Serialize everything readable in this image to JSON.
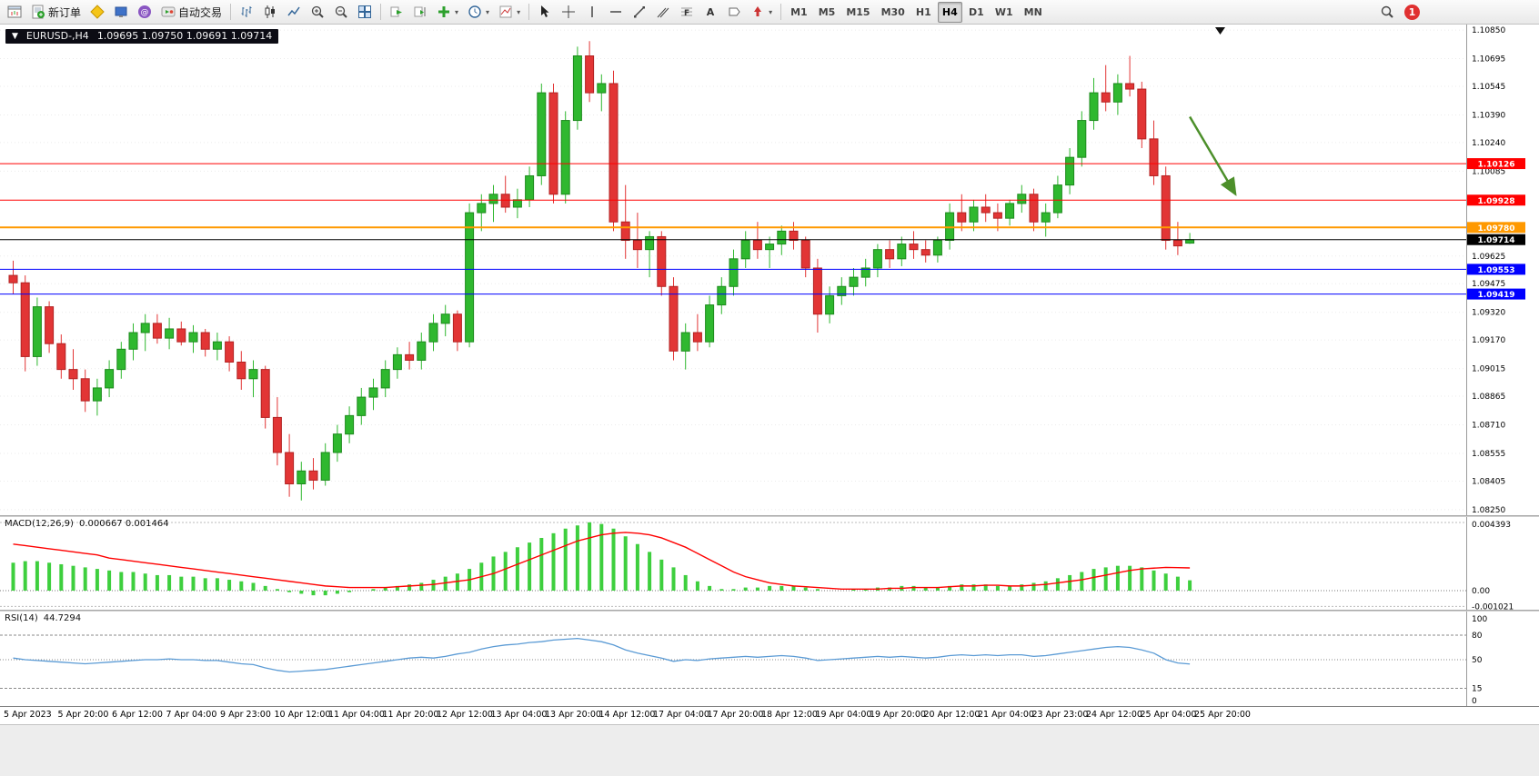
{
  "window": {
    "badge_count": "1"
  },
  "toolbar": {
    "new_order_label": "新订单",
    "autotrading_label": "自动交易",
    "timeframes": [
      "M1",
      "M5",
      "M15",
      "M30",
      "H1",
      "H4",
      "D1",
      "W1",
      "MN"
    ],
    "active_timeframe": "H4"
  },
  "chart": {
    "symbol": "EURUSD-,H4",
    "ohlc_text": "1.09695 1.09750 1.09691 1.09714"
  },
  "colors": {
    "up": "#2fb82f",
    "down": "#e23535",
    "macd_histogram": "#3ecf3e",
    "macd_signal": "#ff0000",
    "rsi_line": "#5b9bd5",
    "resistance_line": "#ff0000",
    "pivot_line": "#ff9900",
    "price_line": "#000000",
    "support_line": "#0000ff",
    "arrow": "#4c8f2a"
  },
  "chart_data": [
    {
      "type": "candlestick",
      "symbol": "EURUSD-",
      "timeframe": "H4",
      "ylim": [
        1.0822,
        1.1088
      ],
      "price_ticks": [
        1.1085,
        1.10695,
        1.10545,
        1.1039,
        1.1024,
        1.10085,
        1.09625,
        1.09475,
        1.0932,
        1.0917,
        1.09015,
        1.08865,
        1.0871,
        1.08555,
        1.08405,
        1.0825
      ],
      "hlines": [
        {
          "price": 1.10126,
          "color": "#ff0000",
          "label": "1.10126",
          "width": 1
        },
        {
          "price": 1.09928,
          "color": "#ff0000",
          "label": "1.09928",
          "width": 1
        },
        {
          "price": 1.0978,
          "color": "#ff9900",
          "label": "1.09780",
          "width": 2
        },
        {
          "price": 1.09714,
          "color": "#000000",
          "label": "1.09714",
          "width": 1
        },
        {
          "price": 1.09553,
          "color": "#0000ff",
          "label": "1.09553",
          "width": 1
        },
        {
          "price": 1.09419,
          "color": "#0000ff",
          "label": "1.09419",
          "width": 1
        }
      ],
      "annotation": {
        "type": "arrow",
        "color": "#4c8f2a",
        "from": {
          "bar": 98,
          "price": 1.1038
        },
        "to": {
          "bar": 101.8,
          "price": 1.0996
        }
      },
      "time_labels": [
        "5 Apr 2023",
        "5 Apr 20:00",
        "6 Apr 12:00",
        "7 Apr 04:00",
        "9 Apr 23:00",
        "10 Apr 12:00",
        "11 Apr 04:00",
        "11 Apr 20:00",
        "12 Apr 12:00",
        "13 Apr 04:00",
        "13 Apr 20:00",
        "14 Apr 12:00",
        "17 Apr 04:00",
        "17 Apr 20:00",
        "18 Apr 12:00",
        "19 Apr 04:00",
        "19 Apr 20:00",
        "20 Apr 12:00",
        "21 Apr 04:00",
        "23 Apr 23:00",
        "24 Apr 12:00",
        "25 Apr 04:00",
        "25 Apr 20:00"
      ],
      "candles": [
        [
          1.0952,
          1.096,
          1.0942,
          1.0948
        ],
        [
          1.0948,
          1.0952,
          1.09,
          1.0908
        ],
        [
          1.0908,
          1.094,
          1.0903,
          1.0935
        ],
        [
          1.0935,
          1.0938,
          1.091,
          1.0915
        ],
        [
          1.0915,
          1.092,
          1.0896,
          1.0901
        ],
        [
          1.0901,
          1.0912,
          1.089,
          1.0896
        ],
        [
          1.0896,
          1.0901,
          1.0878,
          1.0884
        ],
        [
          1.0884,
          1.0896,
          1.0876,
          1.0891
        ],
        [
          1.0891,
          1.0906,
          1.0886,
          1.0901
        ],
        [
          1.0901,
          1.0916,
          1.0896,
          1.0912
        ],
        [
          1.0912,
          1.0926,
          1.0906,
          1.0921
        ],
        [
          1.0921,
          1.0931,
          1.0911,
          1.0926
        ],
        [
          1.0926,
          1.0931,
          1.0915,
          1.0918
        ],
        [
          1.0918,
          1.0929,
          1.0912,
          1.0923
        ],
        [
          1.0923,
          1.0927,
          1.0914,
          1.0916
        ],
        [
          1.0916,
          1.0925,
          1.091,
          1.0921
        ],
        [
          1.0921,
          1.0923,
          1.0908,
          1.0912
        ],
        [
          1.0912,
          1.0921,
          1.0906,
          1.0916
        ],
        [
          1.0916,
          1.0919,
          1.09,
          1.0905
        ],
        [
          1.0905,
          1.0911,
          1.089,
          1.0896
        ],
        [
          1.0896,
          1.0906,
          1.0886,
          1.0901
        ],
        [
          1.0901,
          1.0903,
          1.0869,
          1.0875
        ],
        [
          1.0875,
          1.0886,
          1.0849,
          1.0856
        ],
        [
          1.0856,
          1.0866,
          1.0832,
          1.0839
        ],
        [
          1.0839,
          1.0851,
          1.083,
          1.0846
        ],
        [
          1.0846,
          1.0853,
          1.0836,
          1.0841
        ],
        [
          1.0841,
          1.0861,
          1.0838,
          1.0856
        ],
        [
          1.0856,
          1.0871,
          1.0851,
          1.0866
        ],
        [
          1.0866,
          1.0881,
          1.0861,
          1.0876
        ],
        [
          1.0876,
          1.0891,
          1.0871,
          1.0886
        ],
        [
          1.0886,
          1.0896,
          1.0879,
          1.0891
        ],
        [
          1.0891,
          1.0906,
          1.0886,
          1.0901
        ],
        [
          1.0901,
          1.0913,
          1.0896,
          1.0909
        ],
        [
          1.0909,
          1.0916,
          1.0901,
          1.0906
        ],
        [
          1.0906,
          1.0921,
          1.0901,
          1.0916
        ],
        [
          1.0916,
          1.0931,
          1.0911,
          1.0926
        ],
        [
          1.0926,
          1.0936,
          1.0919,
          1.0931
        ],
        [
          1.0931,
          1.0933,
          1.0911,
          1.0916
        ],
        [
          1.0916,
          1.0991,
          1.0913,
          1.0986
        ],
        [
          1.0986,
          1.0996,
          1.0976,
          1.0991
        ],
        [
          1.0991,
          1.1001,
          1.0981,
          1.0996
        ],
        [
          1.0996,
          1.1006,
          1.0986,
          1.0989
        ],
        [
          1.0989,
          1.0999,
          1.0983,
          1.0993
        ],
        [
          1.0993,
          1.1011,
          1.0989,
          1.1006
        ],
        [
          1.1006,
          1.1056,
          1.1001,
          1.1051
        ],
        [
          1.1051,
          1.1056,
          1.0991,
          1.0996
        ],
        [
          1.0996,
          1.1041,
          1.0991,
          1.1036
        ],
        [
          1.1036,
          1.1076,
          1.1031,
          1.1071
        ],
        [
          1.1071,
          1.1079,
          1.1046,
          1.1051
        ],
        [
          1.1051,
          1.1061,
          1.1041,
          1.1056
        ],
        [
          1.1056,
          1.1063,
          1.0976,
          1.0981
        ],
        [
          1.0981,
          1.1001,
          1.0961,
          1.0971
        ],
        [
          1.0971,
          1.0986,
          1.0956,
          1.0966
        ],
        [
          1.0966,
          1.0976,
          1.0951,
          1.0973
        ],
        [
          1.0973,
          1.0976,
          1.0941,
          1.0946
        ],
        [
          1.0946,
          1.0951,
          1.0906,
          1.0911
        ],
        [
          1.0911,
          1.0926,
          1.0901,
          1.0921
        ],
        [
          1.0921,
          1.0931,
          1.0911,
          1.0916
        ],
        [
          1.0916,
          1.0941,
          1.0913,
          1.0936
        ],
        [
          1.0936,
          1.0951,
          1.0931,
          1.0946
        ],
        [
          1.0946,
          1.0966,
          1.0941,
          1.0961
        ],
        [
          1.0961,
          1.0976,
          1.0956,
          1.0971
        ],
        [
          1.0971,
          1.0981,
          1.0961,
          1.0966
        ],
        [
          1.0966,
          1.0973,
          1.0956,
          1.0969
        ],
        [
          1.0969,
          1.0979,
          1.0963,
          1.0976
        ],
        [
          1.0976,
          1.0981,
          1.0966,
          1.0971
        ],
        [
          1.0971,
          1.0973,
          1.0951,
          1.0956
        ],
        [
          1.0956,
          1.0961,
          1.0921,
          1.0931
        ],
        [
          1.0931,
          1.0946,
          1.0926,
          1.0941
        ],
        [
          1.0941,
          1.0951,
          1.0936,
          1.0946
        ],
        [
          1.0946,
          1.0956,
          1.0941,
          1.0951
        ],
        [
          1.0951,
          1.0961,
          1.0946,
          1.0956
        ],
        [
          1.0956,
          1.0969,
          1.0951,
          1.0966
        ],
        [
          1.0966,
          1.0971,
          1.0956,
          1.0961
        ],
        [
          1.0961,
          1.0973,
          1.0957,
          1.0969
        ],
        [
          1.0969,
          1.0976,
          1.0961,
          1.0966
        ],
        [
          1.0966,
          1.0971,
          1.0959,
          1.0963
        ],
        [
          1.0963,
          1.0973,
          1.0959,
          1.0971
        ],
        [
          1.0971,
          1.0991,
          1.0966,
          1.0986
        ],
        [
          1.0986,
          1.0996,
          1.0976,
          1.0981
        ],
        [
          1.0981,
          1.0993,
          1.0976,
          1.0989
        ],
        [
          1.0989,
          1.0996,
          1.0981,
          1.0986
        ],
        [
          1.0986,
          1.0991,
          1.0976,
          1.0983
        ],
        [
          1.0983,
          1.0993,
          1.0979,
          1.0991
        ],
        [
          1.0991,
          1.1001,
          1.0986,
          1.0996
        ],
        [
          1.0996,
          1.0999,
          1.0976,
          1.0981
        ],
        [
          1.0981,
          1.0991,
          1.0973,
          1.0986
        ],
        [
          1.0986,
          1.1006,
          1.0983,
          1.1001
        ],
        [
          1.1001,
          1.1021,
          1.0996,
          1.1016
        ],
        [
          1.1016,
          1.1041,
          1.1011,
          1.1036
        ],
        [
          1.1036,
          1.1059,
          1.1031,
          1.1051
        ],
        [
          1.1051,
          1.1066,
          1.1041,
          1.1046
        ],
        [
          1.1046,
          1.1061,
          1.1039,
          1.1056
        ],
        [
          1.1056,
          1.1071,
          1.1049,
          1.1053
        ],
        [
          1.1053,
          1.1057,
          1.1021,
          1.1026
        ],
        [
          1.1026,
          1.1036,
          1.1001,
          1.1006
        ],
        [
          1.1006,
          1.1011,
          1.0966,
          1.0971
        ],
        [
          1.0971,
          1.0981,
          1.0963,
          1.0968
        ],
        [
          1.09695,
          1.0975,
          1.09691,
          1.09714
        ]
      ]
    },
    {
      "type": "bar",
      "name": "MACD(12,26,9)",
      "value_text": "0.000667 0.001464",
      "axis": [
        0.004393,
        0,
        -0.001021
      ],
      "histogram": [
        0.0018,
        0.0019,
        0.0019,
        0.0018,
        0.0017,
        0.0016,
        0.0015,
        0.0014,
        0.0013,
        0.0012,
        0.0012,
        0.0011,
        0.001,
        0.001,
        0.0009,
        0.0009,
        0.0008,
        0.0008,
        0.0007,
        0.0006,
        0.0005,
        0.0003,
        0.0001,
        -0.0001,
        -0.0002,
        -0.0003,
        -0.0003,
        -0.0002,
        -0.0001,
        0.0,
        0.0001,
        0.0002,
        0.0003,
        0.0004,
        0.0005,
        0.0007,
        0.0009,
        0.0011,
        0.0014,
        0.0018,
        0.0022,
        0.0025,
        0.0028,
        0.0031,
        0.0034,
        0.0037,
        0.004,
        0.0042,
        0.0044,
        0.0043,
        0.004,
        0.0035,
        0.003,
        0.0025,
        0.002,
        0.0015,
        0.001,
        0.0006,
        0.0003,
        0.0001,
        0.0001,
        0.0002,
        0.0002,
        0.0003,
        0.0003,
        0.0003,
        0.0002,
        0.0001,
        0.0,
        0.0,
        0.0001,
        0.0001,
        0.0002,
        0.0002,
        0.0003,
        0.0003,
        0.0002,
        0.0002,
        0.0003,
        0.0004,
        0.0004,
        0.0004,
        0.0003,
        0.0003,
        0.0004,
        0.0005,
        0.0006,
        0.0008,
        0.001,
        0.0012,
        0.0014,
        0.0015,
        0.0016,
        0.0016,
        0.0015,
        0.0013,
        0.0011,
        0.0009,
        0.000667
      ],
      "signal": [
        0.003,
        0.0029,
        0.0028,
        0.0027,
        0.0026,
        0.0025,
        0.0024,
        0.0023,
        0.0021,
        0.002,
        0.0019,
        0.0018,
        0.0017,
        0.0016,
        0.0015,
        0.0014,
        0.0013,
        0.0012,
        0.0011,
        0.001,
        0.0009,
        0.0008,
        0.0007,
        0.0006,
        0.0005,
        0.0004,
        0.0003,
        0.00025,
        0.0002,
        0.0002,
        0.0002,
        0.0002,
        0.00025,
        0.0003,
        0.00035,
        0.0004,
        0.0005,
        0.0006,
        0.0007,
        0.0009,
        0.0011,
        0.0014,
        0.0017,
        0.002,
        0.0023,
        0.0026,
        0.0029,
        0.0032,
        0.0034,
        0.0036,
        0.0037,
        0.00375,
        0.0037,
        0.0036,
        0.0034,
        0.0031,
        0.0028,
        0.0024,
        0.002,
        0.0016,
        0.0012,
        0.0009,
        0.0007,
        0.0005,
        0.0004,
        0.0003,
        0.00025,
        0.0002,
        0.00015,
        0.0001,
        0.0001,
        0.0001,
        0.0001,
        0.00015,
        0.00015,
        0.0002,
        0.0002,
        0.0002,
        0.00025,
        0.0003,
        0.0003,
        0.00035,
        0.00035,
        0.0003,
        0.0003,
        0.00035,
        0.0004,
        0.0005,
        0.0006,
        0.0007,
        0.00085,
        0.001,
        0.00115,
        0.0013,
        0.0014,
        0.00145,
        0.0015,
        0.00148,
        0.001464
      ]
    },
    {
      "type": "line",
      "name": "RSI(14)",
      "value_text": "44.7294",
      "levels": [
        80,
        50,
        15
      ],
      "axis_labels": [
        100,
        80,
        50,
        15,
        0
      ],
      "values": [
        52,
        50,
        49,
        48,
        47,
        46,
        45,
        46,
        47,
        48,
        49,
        50,
        50,
        51,
        50,
        50,
        49,
        49,
        47,
        45,
        44,
        40,
        37,
        35,
        36,
        37,
        38,
        40,
        42,
        44,
        46,
        48,
        50,
        52,
        53,
        52,
        54,
        57,
        59,
        63,
        66,
        68,
        69,
        71,
        72,
        74,
        75,
        76,
        74,
        72,
        68,
        62,
        58,
        55,
        52,
        48,
        50,
        49,
        51,
        52,
        53,
        54,
        53,
        54,
        55,
        54,
        52,
        49,
        50,
        51,
        52,
        53,
        54,
        53,
        54,
        53,
        52,
        53,
        55,
        56,
        55,
        56,
        55,
        56,
        56,
        54,
        55,
        57,
        59,
        61,
        63,
        65,
        66,
        65,
        62,
        58,
        50,
        46,
        44.73
      ]
    }
  ]
}
